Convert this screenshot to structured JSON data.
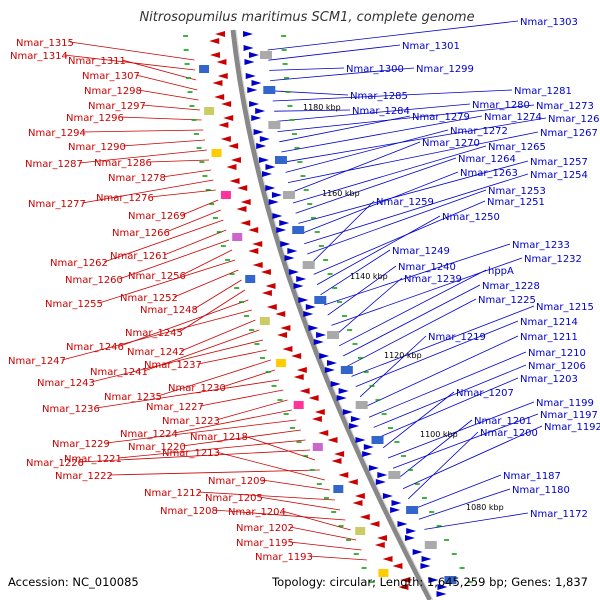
{
  "title": "Nitrosopumilus maritimus SCM1, complete genome",
  "accession_text": "Accession: NC_010085",
  "topology_text": "Topology: circular; Length: 1,645,259 bp; Genes: 1,837",
  "colors": {
    "reverse_strand": "#cc0000",
    "forward_strand": "#0000cc",
    "backbone": "#888888",
    "tick": "#009900"
  },
  "kbp_marks": [
    "1180 kbp",
    "1160 kbp",
    "1140 kbp",
    "1120 kbp",
    "1100 kbp",
    "1080 kbp"
  ],
  "left_labels": [
    "Nmar_1315",
    "Nmar_1314",
    "Nmar_1311",
    "Nmar_1307",
    "Nmar_1298",
    "Nmar_1297",
    "Nmar_1296",
    "Nmar_1294",
    "Nmar_1290",
    "Nmar_1287",
    "Nmar_1286",
    "Nmar_1278",
    "Nmar_1277",
    "Nmar_1276",
    "Nmar_1269",
    "Nmar_1266",
    "Nmar_1262",
    "Nmar_1261",
    "Nmar_1260",
    "Nmar_1256",
    "Nmar_1255",
    "Nmar_1252",
    "Nmar_1248",
    "Nmar_1245",
    "Nmar_1246",
    "Nmar_1247",
    "Nmar_1242",
    "Nmar_1241",
    "Nmar_1243",
    "Nmar_1237",
    "Nmar_1235",
    "Nmar_1230",
    "Nmar_1236",
    "Nmar_1227",
    "Nmar_1223",
    "Nmar_1224",
    "Nmar_1229",
    "Nmar_1220",
    "Nmar_1221",
    "Nmar_1226",
    "Nmar_1218",
    "Nmar_1222",
    "Nmar_1213",
    "Nmar_1209",
    "Nmar_1212",
    "Nmar_1205",
    "Nmar_1208",
    "Nmar_1204",
    "Nmar_1202",
    "Nmar_1195",
    "Nmar_1193"
  ],
  "right_labels": [
    "Nmar_1303",
    "Nmar_1301",
    "Nmar_1300",
    "Nmar_1299",
    "Nmar_1285",
    "Nmar_1281",
    "Nmar_1284",
    "Nmar_1280",
    "Nmar_1273",
    "Nmar_1279",
    "Nmar_1274",
    "Nmar_1268",
    "Nmar_1272",
    "Nmar_1267",
    "Nmar_1270",
    "Nmar_1265",
    "Nmar_1264",
    "Nmar_1257",
    "Nmar_1263",
    "Nmar_1254",
    "Nmar_1253",
    "Nmar_1259",
    "Nmar_1251",
    "Nmar_1250",
    "Nmar_1249",
    "Nmar_1233",
    "Nmar_1240",
    "Nmar_1232",
    "Nmar_1239",
    "hppA",
    "Nmar_1228",
    "Nmar_1225",
    "Nmar_1215",
    "Nmar_1214",
    "Nmar_1219",
    "Nmar_1211",
    "Nmar_1210",
    "Nmar_1206",
    "Nmar_1203",
    "Nmar_1207",
    "Nmar_1199",
    "Nmar_1197",
    "Nmar_1201",
    "Nmar_1192",
    "Nmar_1200",
    "Nmar_1187",
    "Nmar_1180",
    "Nmar_1172"
  ]
}
